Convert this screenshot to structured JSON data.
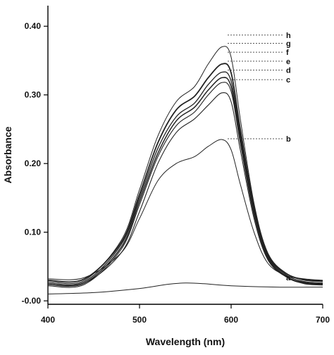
{
  "chart_data": {
    "type": "line",
    "xlabel": "Wavelength (nm)",
    "ylabel": "Absorbance",
    "xlim": [
      400,
      700
    ],
    "ylim": [
      -0.005,
      0.43
    ],
    "x_ticks": [
      400,
      500,
      600,
      700
    ],
    "x_tick_labels": [
      "400",
      "500",
      "600",
      "700"
    ],
    "y_ticks": [
      0.0,
      0.1,
      0.2,
      0.3,
      0.4
    ],
    "y_tick_labels": [
      "-0.00",
      "0.10",
      "0.20",
      "0.30",
      "0.40"
    ],
    "grid": false,
    "line_color": "#222222",
    "series": [
      {
        "name": "a",
        "x": [
          400,
          450,
          500,
          530,
          550,
          570,
          600,
          650,
          700
        ],
        "y": [
          0.01,
          0.012,
          0.018,
          0.024,
          0.026,
          0.025,
          0.022,
          0.02,
          0.02
        ]
      },
      {
        "name": "b",
        "x": [
          400,
          440,
          480,
          500,
          520,
          540,
          560,
          575,
          590,
          600,
          610,
          625,
          640,
          660,
          680,
          700
        ],
        "y": [
          0.032,
          0.034,
          0.07,
          0.12,
          0.175,
          0.2,
          0.21,
          0.225,
          0.235,
          0.22,
          0.17,
          0.1,
          0.055,
          0.037,
          0.032,
          0.03
        ]
      },
      {
        "name": "c",
        "x": [
          400,
          440,
          480,
          500,
          520,
          540,
          560,
          575,
          590,
          600,
          610,
          625,
          640,
          660,
          680,
          700
        ],
        "y": [
          0.024,
          0.026,
          0.07,
          0.13,
          0.2,
          0.245,
          0.265,
          0.285,
          0.303,
          0.29,
          0.22,
          0.12,
          0.06,
          0.035,
          0.027,
          0.025
        ]
      },
      {
        "name": "d",
        "x": [
          400,
          440,
          480,
          500,
          520,
          540,
          560,
          575,
          590,
          600,
          610,
          625,
          640,
          660,
          680,
          700
        ],
        "y": [
          0.022,
          0.024,
          0.075,
          0.14,
          0.21,
          0.255,
          0.275,
          0.3,
          0.318,
          0.305,
          0.23,
          0.125,
          0.062,
          0.035,
          0.025,
          0.023
        ]
      },
      {
        "name": "e",
        "x": [
          400,
          440,
          480,
          500,
          520,
          540,
          560,
          575,
          590,
          600,
          610,
          625,
          640,
          660,
          680,
          700
        ],
        "y": [
          0.024,
          0.026,
          0.078,
          0.145,
          0.215,
          0.262,
          0.282,
          0.307,
          0.325,
          0.312,
          0.236,
          0.128,
          0.064,
          0.036,
          0.026,
          0.024
        ]
      },
      {
        "name": "f",
        "x": [
          400,
          440,
          480,
          500,
          520,
          540,
          560,
          575,
          590,
          600,
          610,
          625,
          640,
          660,
          680,
          700
        ],
        "y": [
          0.026,
          0.028,
          0.082,
          0.15,
          0.222,
          0.268,
          0.288,
          0.315,
          0.333,
          0.32,
          0.242,
          0.132,
          0.066,
          0.038,
          0.028,
          0.026
        ]
      },
      {
        "name": "g",
        "x": [
          400,
          440,
          480,
          500,
          520,
          540,
          560,
          575,
          590,
          600,
          610,
          625,
          640,
          660,
          680,
          700
        ],
        "y": [
          0.03,
          0.032,
          0.085,
          0.155,
          0.23,
          0.278,
          0.298,
          0.325,
          0.345,
          0.332,
          0.25,
          0.137,
          0.068,
          0.04,
          0.031,
          0.029
        ]
      },
      {
        "name": "h",
        "x": [
          400,
          440,
          480,
          500,
          520,
          540,
          560,
          575,
          590,
          600,
          610,
          625,
          640,
          660,
          680,
          700
        ],
        "y": [
          0.028,
          0.03,
          0.088,
          0.162,
          0.24,
          0.29,
          0.312,
          0.345,
          0.37,
          0.355,
          0.265,
          0.142,
          0.07,
          0.04,
          0.03,
          0.028
        ]
      }
    ],
    "labels": [
      {
        "text": "h",
        "x": 660,
        "y": 0.383
      },
      {
        "text": "g",
        "x": 660,
        "y": 0.371
      },
      {
        "text": "f",
        "x": 660,
        "y": 0.358
      },
      {
        "text": "e",
        "x": 660,
        "y": 0.345
      },
      {
        "text": "d",
        "x": 660,
        "y": 0.332
      },
      {
        "text": "c",
        "x": 660,
        "y": 0.318
      },
      {
        "text": "b",
        "x": 660,
        "y": 0.232
      },
      {
        "text": "a",
        "x": 660,
        "y": 0.03
      }
    ]
  }
}
